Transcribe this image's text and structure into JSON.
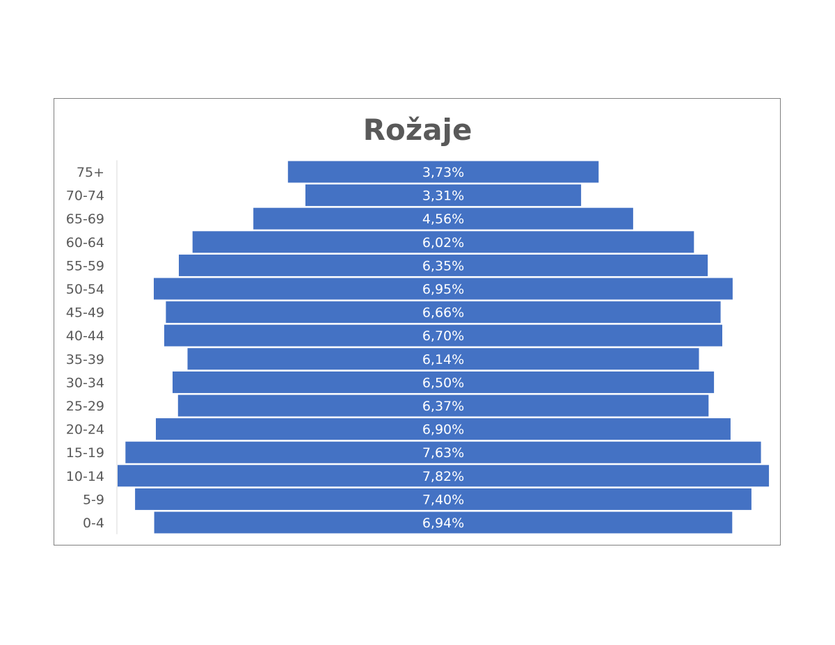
{
  "chart_data": {
    "type": "bar",
    "title": "Rožaje",
    "orientation": "horizontal",
    "layout": "centered-population-pyramid",
    "categories": [
      "0-4",
      "5-9",
      "10-14",
      "15-19",
      "20-24",
      "25-29",
      "30-34",
      "35-39",
      "40-44",
      "45-49",
      "50-54",
      "55-59",
      "60-64",
      "65-69",
      "70-74",
      "75+"
    ],
    "values": [
      6.94,
      7.4,
      7.82,
      7.63,
      6.9,
      6.37,
      6.5,
      6.14,
      6.7,
      6.66,
      6.95,
      6.35,
      6.02,
      4.56,
      3.31,
      3.73
    ],
    "labels": [
      "6,94%",
      "7,40%",
      "7,82%",
      "7,63%",
      "6,90%",
      "6,37%",
      "6,50%",
      "6,14%",
      "6,70%",
      "6,66%",
      "6,95%",
      "6,35%",
      "6,02%",
      "4,56%",
      "3,31%",
      "3,73%"
    ],
    "unit": "%",
    "xlabel": "",
    "ylabel": "",
    "legend": "none",
    "grid": false,
    "bar_color": "#4472c4",
    "label_color": "#ffffff",
    "axis_text_color": "#595959",
    "title_color": "#595959"
  }
}
